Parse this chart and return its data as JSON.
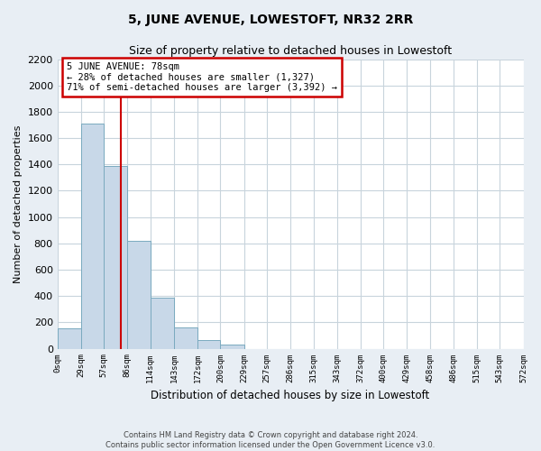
{
  "title": "5, JUNE AVENUE, LOWESTOFT, NR32 2RR",
  "subtitle": "Size of property relative to detached houses in Lowestoft",
  "xlabel": "Distribution of detached houses by size in Lowestoft",
  "ylabel": "Number of detached properties",
  "bin_edges": [
    0,
    29,
    57,
    86,
    114,
    143,
    172,
    200,
    229,
    257,
    286,
    315,
    343,
    372,
    400,
    429,
    458,
    486,
    515,
    543,
    572
  ],
  "bin_labels": [
    "0sqm",
    "29sqm",
    "57sqm",
    "86sqm",
    "114sqm",
    "143sqm",
    "172sqm",
    "200sqm",
    "229sqm",
    "257sqm",
    "286sqm",
    "315sqm",
    "343sqm",
    "372sqm",
    "400sqm",
    "429sqm",
    "458sqm",
    "486sqm",
    "515sqm",
    "543sqm",
    "572sqm"
  ],
  "bar_heights": [
    155,
    1710,
    1390,
    820,
    385,
    160,
    65,
    30,
    0,
    0,
    0,
    0,
    0,
    0,
    0,
    0,
    0,
    0,
    0,
    0
  ],
  "bar_color": "#c8d8e8",
  "bar_edgecolor": "#7aaabf",
  "property_line_x": 78,
  "property_line_color": "#cc0000",
  "annotation_title": "5 JUNE AVENUE: 78sqm",
  "annotation_line1": "← 28% of detached houses are smaller (1,327)",
  "annotation_line2": "71% of semi-detached houses are larger (3,392) →",
  "annotation_box_edgecolor": "#cc0000",
  "ylim": [
    0,
    2200
  ],
  "yticks": [
    0,
    200,
    400,
    600,
    800,
    1000,
    1200,
    1400,
    1600,
    1800,
    2000,
    2200
  ],
  "footer_line1": "Contains HM Land Registry data © Crown copyright and database right 2024.",
  "footer_line2": "Contains public sector information licensed under the Open Government Licence v3.0.",
  "background_color": "#e8eef4",
  "plot_background_color": "#ffffff",
  "grid_color": "#c8d4dc"
}
